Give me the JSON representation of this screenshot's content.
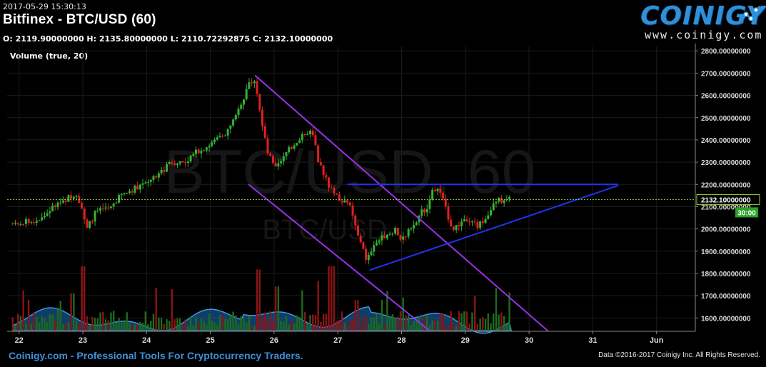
{
  "header": {
    "timestamp": "2017-05-29 15:30:13",
    "title": "Bitfinex - BTC/USD (60)",
    "ohlc": "O: 2119.90000000 H: 2135.80000000 L: 2110.72292875 C: 2132.10000000",
    "volume_label": "Volume (true, 20)"
  },
  "logo": {
    "word": "COINIGY",
    "url": "www.coinigy.com"
  },
  "watermark": {
    "big": "BTC/USD, 60",
    "small": "BTC/USD"
  },
  "footer": {
    "left": "Coinigy.com - Professional Tools For Cryptocurrency Traders.",
    "right": "Data ©2016-2017 Coinigy Inc. All Rights Reserved."
  },
  "colors": {
    "up": "#33b233",
    "down": "#e02020",
    "purple": "#9a30e8",
    "blue": "#2233ee",
    "price_line": "#9acd32",
    "volume_area": "#1e6fb8",
    "label_bg": "#2aa02a"
  },
  "chart_data": {
    "type": "candlestick",
    "x_ticks": [
      "22",
      "23",
      "24",
      "25",
      "26",
      "27",
      "28",
      "29",
      "30",
      "31",
      "Jun"
    ],
    "y_ticks": [
      "2800.00000000",
      "2700.00000000",
      "2600.00000000",
      "2500.00000000",
      "2400.00000000",
      "2300.00000000",
      "2200.00000000",
      "2100.00000000",
      "2000.00000000",
      "1900.00000000",
      "1800.00000000",
      "1700.00000000",
      "1600.00000000"
    ],
    "y_values": [
      2800,
      2700,
      2600,
      2500,
      2400,
      2300,
      2200,
      2100,
      2000,
      1900,
      1800,
      1700,
      1600
    ],
    "ylim": [
      1540,
      2820
    ],
    "xlim_days": [
      21.85,
      32.3
    ],
    "current_price": {
      "label": "2132.10000000",
      "value": 2132.1,
      "countdown": "30:00"
    },
    "close_path": [
      [
        21.9,
        2025
      ],
      [
        22.2,
        2035
      ],
      [
        22.4,
        2060
      ],
      [
        22.5,
        2090
      ],
      [
        22.7,
        2130
      ],
      [
        22.9,
        2160
      ],
      [
        23.0,
        2080
      ],
      [
        23.05,
        1990
      ],
      [
        23.2,
        2075
      ],
      [
        23.4,
        2090
      ],
      [
        23.6,
        2150
      ],
      [
        23.8,
        2180
      ],
      [
        24.0,
        2215
      ],
      [
        24.2,
        2250
      ],
      [
        24.4,
        2300
      ],
      [
        24.6,
        2300
      ],
      [
        24.8,
        2350
      ],
      [
        25.0,
        2380
      ],
      [
        25.2,
        2420
      ],
      [
        25.4,
        2500
      ],
      [
        25.6,
        2650
      ],
      [
        25.7,
        2680
      ],
      [
        25.8,
        2500
      ],
      [
        25.9,
        2350
      ],
      [
        26.0,
        2280
      ],
      [
        26.2,
        2340
      ],
      [
        26.3,
        2380
      ],
      [
        26.5,
        2440
      ],
      [
        26.6,
        2430
      ],
      [
        26.7,
        2300
      ],
      [
        26.85,
        2200
      ],
      [
        27.0,
        2140
      ],
      [
        27.2,
        2100
      ],
      [
        27.3,
        1980
      ],
      [
        27.45,
        1860
      ],
      [
        27.6,
        1940
      ],
      [
        27.8,
        1980
      ],
      [
        27.9,
        2000
      ],
      [
        28.0,
        1950
      ],
      [
        28.15,
        2010
      ],
      [
        28.3,
        2070
      ],
      [
        28.4,
        2100
      ],
      [
        28.5,
        2180
      ],
      [
        28.6,
        2170
      ],
      [
        28.7,
        2080
      ],
      [
        28.8,
        2000
      ],
      [
        28.9,
        2020
      ],
      [
        29.0,
        2050
      ],
      [
        29.1,
        2040
      ],
      [
        29.2,
        2010
      ],
      [
        29.3,
        2050
      ],
      [
        29.4,
        2090
      ],
      [
        29.5,
        2130
      ],
      [
        29.6,
        2120
      ],
      [
        29.7,
        2132
      ]
    ],
    "volume_ticks": [
      {
        "x": 23.0,
        "h": 0.95,
        "up": false
      },
      {
        "x": 25.75,
        "h": 0.9,
        "up": false
      },
      {
        "x": 26.9,
        "h": 0.95,
        "up": true
      },
      {
        "x": 26.05,
        "h": 0.65,
        "up": false
      },
      {
        "x": 22.85,
        "h": 0.55,
        "up": false
      },
      {
        "x": 27.3,
        "h": 0.45,
        "up": false
      }
    ],
    "trendlines": [
      {
        "color": "purple",
        "from": [
          25.7,
          2690
        ],
        "to": [
          30.3,
          1540
        ]
      },
      {
        "color": "purple",
        "from": [
          25.6,
          2200
        ],
        "to": [
          28.45,
          1540
        ]
      },
      {
        "color": "blue",
        "from": [
          27.15,
          2200
        ],
        "to": [
          31.4,
          2200
        ]
      },
      {
        "color": "blue",
        "from": [
          27.5,
          1815
        ],
        "to": [
          31.4,
          2195
        ]
      }
    ]
  }
}
